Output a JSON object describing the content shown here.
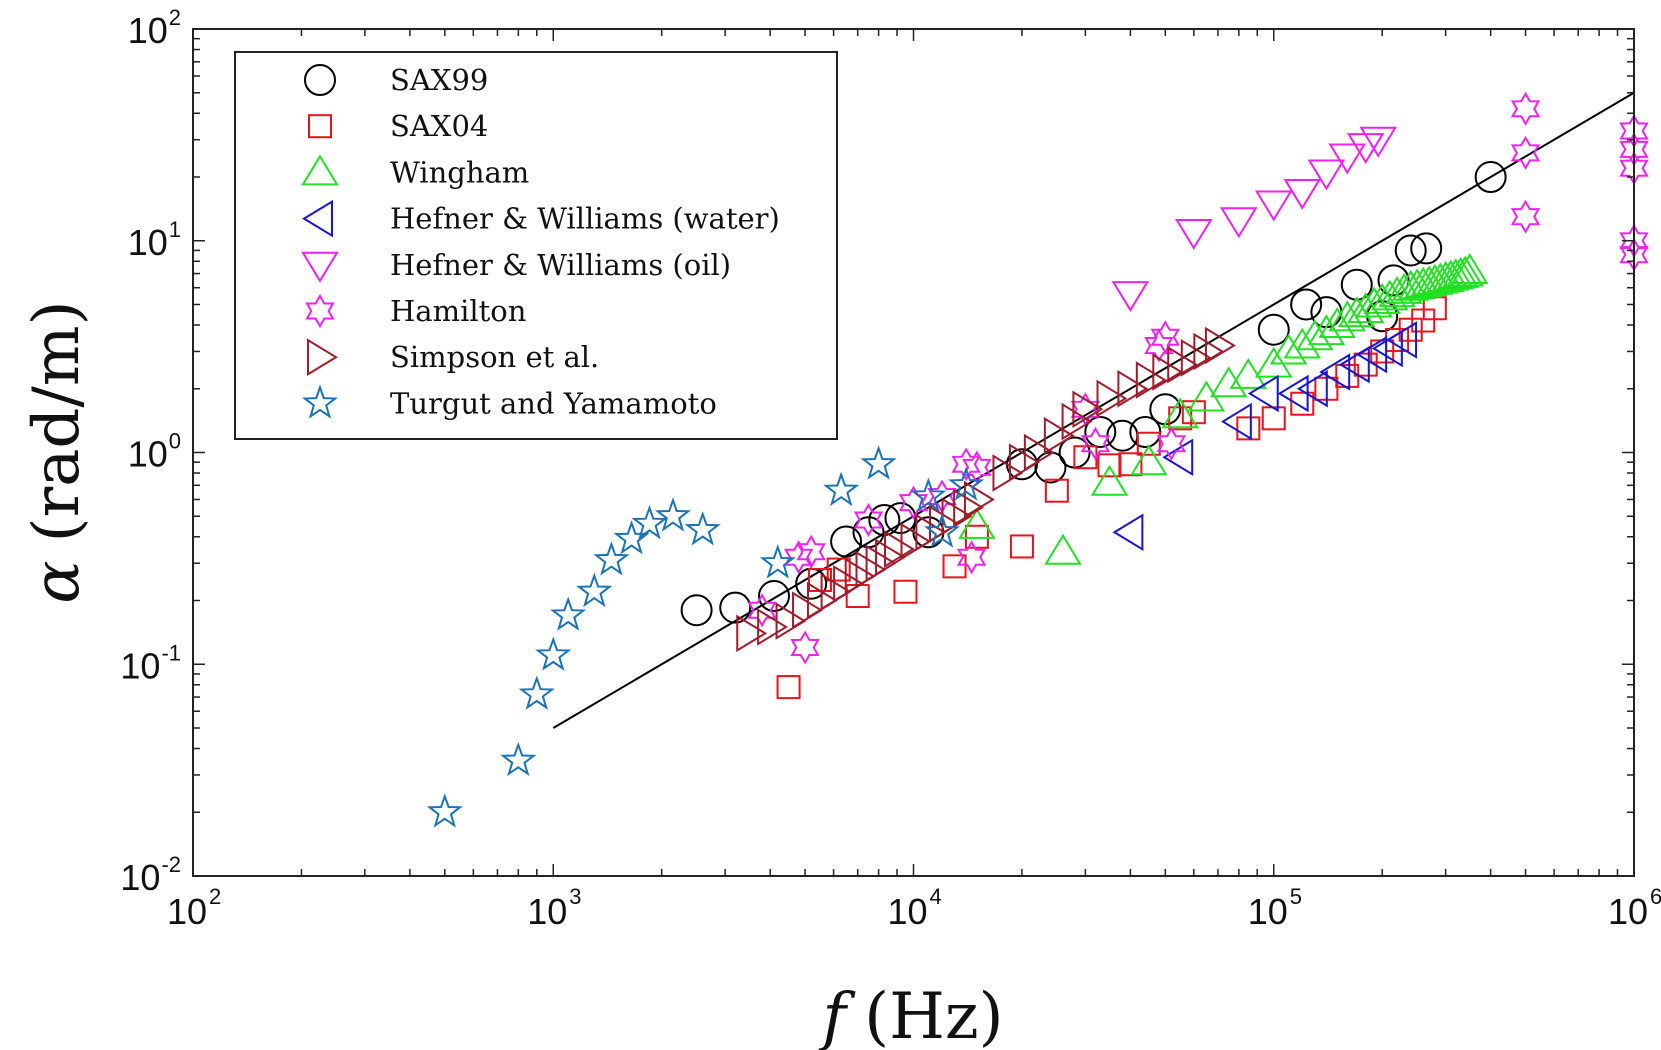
{
  "chart_data": {
    "type": "scatter",
    "title": "",
    "xlabel": {
      "symbol": "f",
      "unit": "(Hz)"
    },
    "ylabel": {
      "symbol": "α",
      "unit": "(rad/m)"
    },
    "xscale": "log",
    "yscale": "log",
    "xlim": [
      100,
      1000000
    ],
    "ylim": [
      0.01,
      100
    ],
    "xticks": [
      {
        "base": "10",
        "exp": "2",
        "value": 100
      },
      {
        "base": "10",
        "exp": "3",
        "value": 1000
      },
      {
        "base": "10",
        "exp": "4",
        "value": 10000
      },
      {
        "base": "10",
        "exp": "5",
        "value": 100000
      },
      {
        "base": "10",
        "exp": "6",
        "value": 1000000
      }
    ],
    "yticks": [
      {
        "base": "10",
        "exp": "-2",
        "value": 0.01
      },
      {
        "base": "10",
        "exp": "-1",
        "value": 0.1
      },
      {
        "base": "10",
        "exp": "0",
        "value": 1
      },
      {
        "base": "10",
        "exp": "1",
        "value": 10
      },
      {
        "base": "10",
        "exp": "2",
        "value": 100
      }
    ],
    "grid": false,
    "legend_position": "top-left",
    "fit_line": {
      "x": [
        1000,
        1000000
      ],
      "y": [
        0.05,
        50
      ]
    },
    "series": [
      {
        "name": "SAX99",
        "marker": "circle",
        "color": "#000000",
        "x": [
          2500,
          3200,
          4100,
          5200,
          6500,
          7500,
          8300,
          9200,
          11000,
          20000,
          24000,
          28000,
          33000,
          38000,
          44000,
          50000,
          100000,
          123000,
          140000,
          170000,
          200000,
          215000,
          240000,
          265000,
          400000
        ],
        "y": [
          0.18,
          0.185,
          0.21,
          0.24,
          0.38,
          0.42,
          0.48,
          0.49,
          0.42,
          0.88,
          0.85,
          1.0,
          1.25,
          1.2,
          1.25,
          1.6,
          3.8,
          5.0,
          4.6,
          6.2,
          4.4,
          6.5,
          9.0,
          9.2,
          20
        ]
      },
      {
        "name": "SAX04",
        "marker": "square",
        "color": "#e8141c",
        "x": [
          4500,
          5500,
          6200,
          7000,
          9500,
          13000,
          15000,
          20000,
          25000,
          30000,
          35000,
          40000,
          45000,
          55000,
          60000,
          85000,
          100000,
          120000,
          140000,
          160000,
          180000,
          200000,
          220000,
          240000,
          260000,
          280000
        ],
        "y": [
          0.078,
          0.25,
          0.28,
          0.21,
          0.22,
          0.29,
          0.4,
          0.36,
          0.66,
          0.95,
          0.87,
          0.88,
          1.1,
          1.45,
          1.55,
          1.3,
          1.45,
          1.7,
          2.0,
          2.3,
          2.6,
          3.0,
          3.4,
          3.8,
          4.2,
          4.8
        ]
      },
      {
        "name": "Wingham",
        "marker": "triangle-up",
        "color": "#22e022",
        "x": [
          15000,
          26000,
          35000,
          45000,
          55000,
          65000,
          75000,
          85000,
          100000,
          110000,
          120000,
          130000,
          140000,
          150000,
          160000,
          170000,
          180000,
          190000,
          200000,
          210000,
          220000,
          230000,
          240000,
          250000,
          260000,
          270000,
          280000,
          290000,
          300000,
          310000,
          320000,
          330000,
          340000,
          350000
        ],
        "y": [
          0.45,
          0.34,
          0.72,
          0.9,
          1.5,
          1.8,
          2.1,
          2.3,
          2.6,
          3.0,
          3.2,
          3.5,
          3.7,
          4.0,
          4.3,
          4.5,
          4.7,
          5.0,
          5.2,
          5.4,
          5.6,
          5.8,
          6.0,
          6.1,
          6.2,
          6.3,
          6.4,
          6.5,
          6.6,
          6.7,
          6.8,
          6.9,
          7.0,
          7.2
        ]
      },
      {
        "name": "Hefner & Williams (water)",
        "marker": "triangle-left",
        "color": "#1515d6",
        "x": [
          40000,
          55000,
          80000,
          95000,
          115000,
          130000,
          150000,
          170000,
          190000,
          210000,
          230000
        ],
        "y": [
          0.42,
          0.95,
          1.4,
          1.9,
          1.9,
          2.0,
          2.4,
          2.6,
          2.9,
          3.1,
          3.4
        ]
      },
      {
        "name": "Hefner & Williams (oil)",
        "marker": "triangle-down",
        "color": "#f020f0",
        "x": [
          40000,
          60000,
          80000,
          100000,
          120000,
          140000,
          160000,
          180000,
          195000
        ],
        "y": [
          5.6,
          11,
          12.5,
          15,
          17,
          21,
          25,
          28,
          30
        ]
      },
      {
        "name": "Hamilton",
        "marker": "hexagram",
        "color": "#f020f0",
        "x": [
          3800,
          4800,
          5000,
          5200,
          7500,
          10000,
          12000,
          14000,
          14500,
          15000,
          30000,
          32000,
          48000,
          50000,
          52000,
          500000,
          500000,
          500000,
          1000000,
          1000000,
          1000000,
          1000000,
          1000000
        ],
        "y": [
          0.18,
          0.32,
          0.12,
          0.34,
          0.48,
          0.58,
          0.62,
          0.88,
          0.32,
          0.85,
          1.6,
          1.1,
          3.2,
          3.5,
          1.1,
          42,
          26,
          13,
          33,
          27,
          22,
          10,
          8.6
        ]
      },
      {
        "name": "Simpson et al.",
        "marker": "triangle-right",
        "color": "#a01c2c",
        "x": [
          3500,
          4000,
          4500,
          5000,
          5500,
          6000,
          6500,
          7000,
          7500,
          8000,
          8500,
          9000,
          10000,
          11000,
          12000,
          13000,
          14000,
          15000,
          18000,
          20000,
          22000,
          25000,
          28000,
          30000,
          35000,
          40000,
          45000,
          50000,
          55000,
          60000,
          65000,
          70000
        ],
        "y": [
          0.14,
          0.15,
          0.16,
          0.18,
          0.2,
          0.22,
          0.24,
          0.26,
          0.28,
          0.3,
          0.32,
          0.35,
          0.38,
          0.42,
          0.46,
          0.5,
          0.55,
          0.6,
          0.8,
          0.9,
          1.0,
          1.2,
          1.4,
          1.6,
          1.8,
          2.0,
          2.2,
          2.4,
          2.6,
          2.8,
          3.0,
          3.2
        ]
      },
      {
        "name": "Turgut and Yamamoto",
        "marker": "pentagram",
        "color": "#1a72b8",
        "x": [
          500,
          800,
          900,
          1000,
          1100,
          1300,
          1450,
          1650,
          1850,
          2150,
          2600,
          4200,
          6300,
          8000,
          11000,
          12000,
          14000
        ],
        "y": [
          0.02,
          0.035,
          0.072,
          0.11,
          0.17,
          0.22,
          0.31,
          0.39,
          0.46,
          0.5,
          0.43,
          0.3,
          0.66,
          0.88,
          0.62,
          0.42,
          0.7
        ]
      }
    ]
  }
}
